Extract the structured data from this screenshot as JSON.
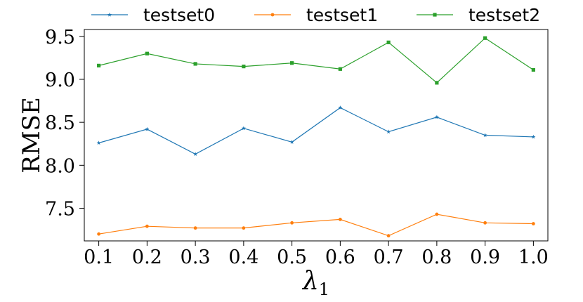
{
  "chart_data": {
    "type": "line",
    "x": [
      0.1,
      0.2,
      0.3,
      0.4,
      0.5,
      0.6,
      0.7,
      0.8,
      0.9,
      1.0
    ],
    "x_tick_labels": [
      "0.1",
      "0.2",
      "0.3",
      "0.4",
      "0.5",
      "0.6",
      "0.7",
      "0.8",
      "0.9",
      "1.0"
    ],
    "y_tick_values": [
      7.5,
      8.0,
      8.5,
      9.0,
      9.5
    ],
    "y_tick_labels": [
      "7.5",
      "8.0",
      "8.5",
      "9.0",
      "9.5"
    ],
    "xlabel_main": "λ",
    "xlabel_sub": "1",
    "ylabel": "RMSE",
    "xlim": [
      0.07,
      1.03
    ],
    "ylim": [
      7.12,
      9.58
    ],
    "grid": false,
    "legend_position": "top",
    "series": [
      {
        "name": "testset0",
        "color": "#1f77b4",
        "marker": "star",
        "values": [
          8.26,
          8.42,
          8.13,
          8.43,
          8.27,
          8.67,
          8.39,
          8.56,
          8.35,
          8.33
        ]
      },
      {
        "name": "testset1",
        "color": "#ff7f0e",
        "marker": "circle",
        "values": [
          7.2,
          7.29,
          7.27,
          7.27,
          7.33,
          7.37,
          7.18,
          7.43,
          7.33,
          7.32
        ]
      },
      {
        "name": "testset2",
        "color": "#2ca02c",
        "marker": "square",
        "values": [
          9.16,
          9.3,
          9.18,
          9.15,
          9.19,
          9.12,
          9.43,
          8.96,
          9.48,
          9.11
        ]
      }
    ]
  }
}
